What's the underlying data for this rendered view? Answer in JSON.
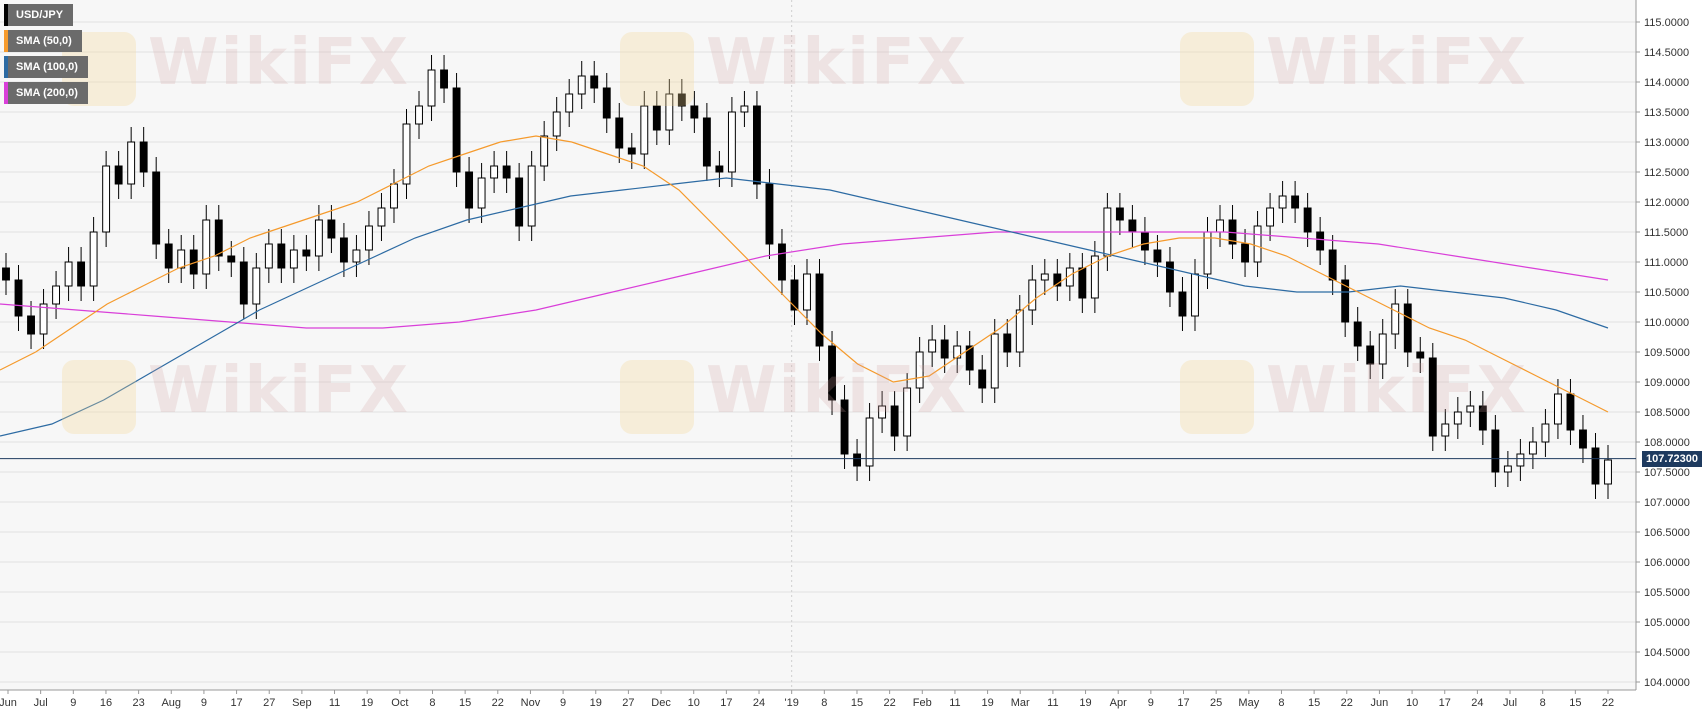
{
  "chart_data": {
    "type": "candlestick",
    "symbol": "USD/JPY",
    "ylim": [
      104.0,
      115.0
    ],
    "yticks": [
      "115.0000",
      "114.5000",
      "114.0000",
      "113.5000",
      "113.0000",
      "112.5000",
      "112.0000",
      "111.5000",
      "111.0000",
      "110.5000",
      "110.0000",
      "109.5000",
      "109.0000",
      "108.5000",
      "108.0000",
      "107.5000",
      "107.0000",
      "106.5000",
      "106.0000",
      "105.5000",
      "105.0000",
      "104.5000",
      "104.0000"
    ],
    "xticks": [
      "Jun",
      "Jul",
      "9",
      "16",
      "23",
      "Aug",
      "9",
      "17",
      "27",
      "Sep",
      "11",
      "19",
      "Oct",
      "8",
      "15",
      "22",
      "Nov",
      "9",
      "19",
      "27",
      "Dec",
      "10",
      "17",
      "24",
      "'19",
      "8",
      "15",
      "22",
      "Feb",
      "11",
      "19",
      "Mar",
      "11",
      "19",
      "Apr",
      "9",
      "17",
      "25",
      "May",
      "8",
      "15",
      "22",
      "Jun",
      "10",
      "17",
      "24",
      "Jul",
      "8",
      "15",
      "22"
    ],
    "last_price": "107.72300",
    "last_price_value": 107.723,
    "legend": [
      {
        "label": "USD/JPY",
        "color": "#000000"
      },
      {
        "label": "SMA (50,0)",
        "color": "#f59a2c"
      },
      {
        "label": "SMA (100,0)",
        "color": "#2d6ba3"
      },
      {
        "label": "SMA (200,0)",
        "color": "#d93fd9"
      }
    ],
    "close": [
      110.7,
      110.1,
      109.8,
      110.3,
      110.6,
      111.0,
      110.6,
      111.5,
      112.6,
      112.3,
      113.0,
      112.5,
      111.3,
      110.9,
      111.2,
      110.8,
      111.7,
      111.1,
      111.0,
      110.3,
      110.9,
      111.3,
      110.9,
      111.2,
      111.1,
      111.7,
      111.4,
      111.0,
      111.2,
      111.6,
      111.9,
      112.3,
      113.3,
      113.6,
      114.2,
      113.9,
      112.5,
      111.9,
      112.4,
      112.6,
      112.4,
      111.6,
      112.6,
      113.1,
      113.5,
      113.8,
      114.1,
      113.9,
      113.4,
      112.9,
      112.8,
      113.6,
      113.2,
      113.8,
      113.6,
      113.4,
      112.6,
      112.5,
      113.5,
      113.6,
      112.3,
      111.3,
      110.7,
      110.2,
      110.8,
      109.6,
      108.7,
      107.8,
      107.6,
      108.4,
      108.6,
      108.1,
      108.9,
      109.5,
      109.7,
      109.4,
      109.6,
      109.2,
      108.9,
      109.8,
      109.5,
      110.2,
      110.7,
      110.8,
      110.6,
      110.9,
      110.4,
      111.1,
      111.9,
      111.7,
      111.5,
      111.2,
      111.0,
      110.5,
      110.1,
      110.8,
      111.5,
      111.7,
      111.3,
      111.0,
      111.6,
      111.9,
      112.1,
      111.9,
      111.5,
      111.2,
      110.7,
      110.0,
      109.6,
      109.3,
      109.8,
      110.3,
      109.5,
      109.4,
      108.1,
      108.3,
      108.5,
      108.6,
      108.2,
      107.5,
      107.6,
      107.8,
      108.0,
      108.3,
      108.8,
      108.2,
      107.9,
      107.3,
      107.7
    ],
    "sma50": [
      109.2,
      109.5,
      109.9,
      110.3,
      110.6,
      110.9,
      111.1,
      111.4,
      111.6,
      111.8,
      112.0,
      112.3,
      112.6,
      112.8,
      113.0,
      113.1,
      113.0,
      112.8,
      112.6,
      112.2,
      111.6,
      111.0,
      110.4,
      109.8,
      109.3,
      109.0,
      109.1,
      109.5,
      109.9,
      110.4,
      110.8,
      111.1,
      111.3,
      111.4,
      111.4,
      111.3,
      111.1,
      110.8,
      110.5,
      110.2,
      109.9,
      109.7,
      109.4,
      109.1,
      108.8,
      108.5
    ],
    "sma100": [
      108.1,
      108.3,
      108.7,
      109.2,
      109.7,
      110.2,
      110.6,
      111.0,
      111.4,
      111.7,
      111.9,
      112.1,
      112.2,
      112.3,
      112.4,
      112.3,
      112.2,
      112.0,
      111.8,
      111.6,
      111.4,
      111.2,
      111.0,
      110.8,
      110.6,
      110.5,
      110.5,
      110.6,
      110.5,
      110.4,
      110.2,
      109.9
    ],
    "sma200": [
      110.3,
      110.2,
      110.1,
      110.0,
      109.9,
      109.9,
      110.0,
      110.2,
      110.5,
      110.8,
      111.1,
      111.3,
      111.4,
      111.5,
      111.5,
      111.5,
      111.5,
      111.4,
      111.3,
      111.1,
      110.9,
      110.7
    ]
  },
  "watermark": "WikiFX"
}
